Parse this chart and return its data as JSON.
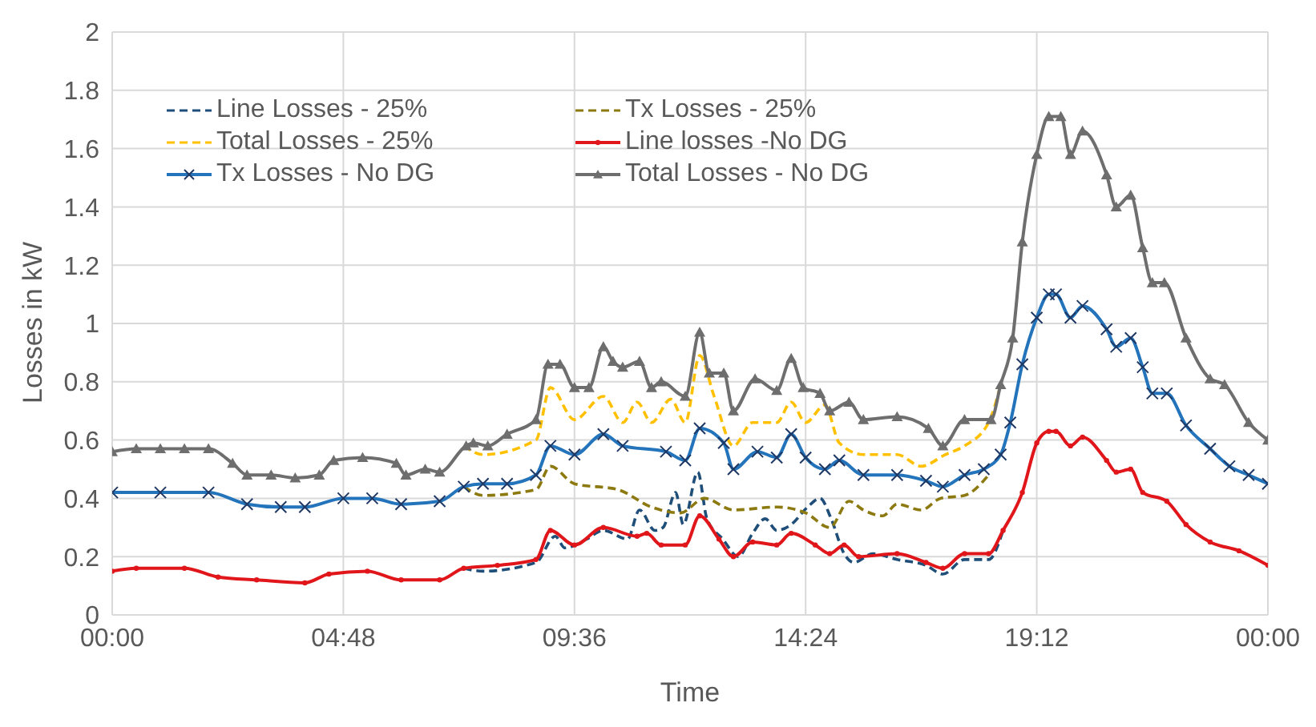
{
  "chart_data": {
    "type": "line",
    "xlabel": "Time",
    "ylabel": "Losses in kW",
    "xlim": [
      0,
      24
    ],
    "xticks": [
      {
        "value": 0,
        "label": "00:00"
      },
      {
        "value": 4.8,
        "label": "04:48"
      },
      {
        "value": 9.6,
        "label": "09:36"
      },
      {
        "value": 14.4,
        "label": "14:24"
      },
      {
        "value": 19.2,
        "label": "19:12"
      },
      {
        "value": 24,
        "label": "00:00"
      }
    ],
    "ylim": [
      0,
      2
    ],
    "yticks": [
      0,
      0.2,
      0.4,
      0.6,
      0.8,
      1,
      1.2,
      1.4,
      1.6,
      1.8,
      2
    ],
    "grid": true,
    "legend": "top left",
    "series": [
      {
        "name": "Line Losses - 25%",
        "color": "#1f4e79",
        "line_style": "dashed",
        "marker": "none",
        "x": [
          7.3,
          7.7,
          8.8,
          9.2,
          9.4,
          9.85,
          10.2,
          10.7,
          10.95,
          11.27,
          11.44,
          11.7,
          11.86,
          12.16,
          12.35,
          12.68,
          13.0,
          13.3,
          13.56,
          13.8,
          14.1,
          14.44,
          14.7,
          14.93,
          15.2,
          15.4,
          15.8,
          16.3,
          16.9,
          17.25,
          17.7,
          18.2,
          18.5
        ],
        "values": [
          0.16,
          0.15,
          0.18,
          0.27,
          0.23,
          0.26,
          0.29,
          0.26,
          0.36,
          0.29,
          0.3,
          0.42,
          0.31,
          0.49,
          0.33,
          0.26,
          0.2,
          0.28,
          0.33,
          0.29,
          0.31,
          0.37,
          0.4,
          0.33,
          0.21,
          0.18,
          0.21,
          0.19,
          0.17,
          0.14,
          0.19,
          0.19,
          0.29
        ]
      },
      {
        "name": "Tx Losses - 25%",
        "color": "#8c7a10",
        "line_style": "dashed",
        "marker": "none",
        "x": [
          7.3,
          7.7,
          8.8,
          9.1,
          9.6,
          10.5,
          11.2,
          11.8,
          12.3,
          12.9,
          13.8,
          14.4,
          14.9,
          15.3,
          15.6,
          16.0,
          16.3,
          16.8,
          17.2,
          17.7,
          18.2
        ],
        "values": [
          0.44,
          0.41,
          0.43,
          0.51,
          0.45,
          0.43,
          0.37,
          0.35,
          0.4,
          0.36,
          0.37,
          0.35,
          0.3,
          0.39,
          0.36,
          0.34,
          0.38,
          0.36,
          0.4,
          0.41,
          0.48
        ]
      },
      {
        "name": "Total Losses - 25%",
        "color": "#ffc000",
        "line_style": "dashed",
        "marker": "none",
        "x": [
          7.3,
          7.7,
          8.8,
          9.1,
          9.6,
          10.2,
          10.6,
          10.9,
          11.2,
          11.6,
          11.9,
          12.2,
          12.5,
          12.9,
          13.3,
          13.8,
          14.1,
          14.4,
          14.8,
          15.1,
          15.6,
          16.3,
          16.8,
          17.3,
          17.7,
          18.2,
          18.45
        ],
        "values": [
          0.58,
          0.55,
          0.6,
          0.78,
          0.67,
          0.75,
          0.66,
          0.73,
          0.66,
          0.74,
          0.66,
          0.89,
          0.75,
          0.58,
          0.66,
          0.66,
          0.73,
          0.66,
          0.72,
          0.59,
          0.55,
          0.55,
          0.51,
          0.55,
          0.58,
          0.66,
          0.79
        ]
      },
      {
        "name": "Line losses -No DG",
        "color": "#e0161b",
        "line_style": "solid",
        "marker": "circle",
        "x": [
          0,
          0.5,
          1.5,
          2.2,
          3,
          4,
          4.5,
          5.3,
          6,
          6.8,
          7.3,
          8,
          8.8,
          9.1,
          9.6,
          10.2,
          10.9,
          11.1,
          11.4,
          11.9,
          12.2,
          12.6,
          12.9,
          13.3,
          13.8,
          14.1,
          14.6,
          14.9,
          15.2,
          15.5,
          16.3,
          16.9,
          17.25,
          17.7,
          18.2,
          18.5,
          18.9,
          19.2,
          19.45,
          19.6,
          19.9,
          20.15,
          20.65,
          20.85,
          21.15,
          21.4,
          21.9,
          22.3,
          22.8,
          23.4,
          24
        ],
        "values": [
          0.15,
          0.16,
          0.16,
          0.13,
          0.12,
          0.11,
          0.14,
          0.15,
          0.12,
          0.12,
          0.16,
          0.17,
          0.19,
          0.29,
          0.24,
          0.3,
          0.27,
          0.28,
          0.24,
          0.24,
          0.34,
          0.26,
          0.2,
          0.25,
          0.24,
          0.28,
          0.24,
          0.21,
          0.24,
          0.2,
          0.21,
          0.18,
          0.16,
          0.21,
          0.21,
          0.29,
          0.42,
          0.59,
          0.63,
          0.63,
          0.58,
          0.61,
          0.53,
          0.49,
          0.5,
          0.42,
          0.39,
          0.31,
          0.25,
          0.22,
          0.17
        ]
      },
      {
        "name": "Tx Losses - No DG",
        "color": "#2374bb",
        "line_style": "solid",
        "marker": "cross",
        "x": [
          0,
          1,
          2,
          2.8,
          3.5,
          4,
          4.8,
          5.4,
          6,
          6.8,
          7.3,
          7.7,
          8.2,
          8.8,
          9.1,
          9.6,
          10.2,
          10.6,
          11.5,
          11.9,
          12.2,
          12.7,
          12.9,
          13.4,
          13.8,
          14.1,
          14.4,
          14.8,
          15.1,
          15.6,
          16.3,
          16.9,
          17.25,
          17.7,
          18.1,
          18.45,
          18.65,
          18.9,
          19.2,
          19.45,
          19.6,
          19.9,
          20.15,
          20.65,
          20.85,
          21.15,
          21.4,
          21.6,
          21.9,
          22.3,
          22.8,
          23.2,
          23.6,
          24
        ],
        "values": [
          0.42,
          0.42,
          0.42,
          0.38,
          0.37,
          0.37,
          0.4,
          0.4,
          0.38,
          0.39,
          0.44,
          0.45,
          0.45,
          0.48,
          0.58,
          0.55,
          0.62,
          0.58,
          0.56,
          0.53,
          0.64,
          0.59,
          0.5,
          0.56,
          0.54,
          0.62,
          0.54,
          0.5,
          0.53,
          0.48,
          0.48,
          0.46,
          0.44,
          0.48,
          0.5,
          0.55,
          0.66,
          0.86,
          1.02,
          1.1,
          1.1,
          1.02,
          1.06,
          0.98,
          0.92,
          0.95,
          0.85,
          0.76,
          0.76,
          0.65,
          0.57,
          0.51,
          0.48,
          0.45
        ]
      },
      {
        "name": "Total Losses - No DG",
        "color": "#6e6e6e",
        "line_style": "solid",
        "marker": "triangle",
        "x": [
          0,
          0.5,
          1,
          1.5,
          2,
          2.5,
          2.8,
          3.3,
          3.8,
          4.3,
          4.6,
          5.2,
          5.9,
          6.1,
          6.5,
          6.8,
          7.35,
          7.5,
          7.8,
          8.2,
          8.8,
          9.05,
          9.3,
          9.6,
          9.9,
          10.2,
          10.4,
          10.6,
          10.95,
          11.2,
          11.4,
          11.9,
          12.2,
          12.4,
          12.7,
          12.9,
          13.35,
          13.8,
          14.1,
          14.35,
          14.7,
          14.9,
          15.3,
          15.6,
          16.3,
          16.95,
          17.25,
          17.7,
          18.25,
          18.45,
          18.7,
          18.9,
          19.2,
          19.45,
          19.7,
          19.9,
          20.15,
          20.65,
          20.85,
          21.15,
          21.4,
          21.6,
          21.85,
          22.3,
          22.8,
          23.1,
          23.6,
          24
        ],
        "values": [
          0.56,
          0.57,
          0.57,
          0.57,
          0.57,
          0.52,
          0.48,
          0.48,
          0.47,
          0.48,
          0.53,
          0.54,
          0.52,
          0.48,
          0.5,
          0.49,
          0.58,
          0.59,
          0.58,
          0.62,
          0.67,
          0.86,
          0.86,
          0.78,
          0.78,
          0.92,
          0.87,
          0.85,
          0.87,
          0.78,
          0.8,
          0.75,
          0.97,
          0.83,
          0.83,
          0.7,
          0.81,
          0.77,
          0.88,
          0.78,
          0.76,
          0.7,
          0.73,
          0.67,
          0.68,
          0.64,
          0.58,
          0.67,
          0.67,
          0.79,
          0.95,
          1.28,
          1.58,
          1.71,
          1.71,
          1.58,
          1.66,
          1.51,
          1.4,
          1.44,
          1.26,
          1.14,
          1.14,
          0.95,
          0.81,
          0.79,
          0.66,
          0.6
        ]
      }
    ]
  }
}
